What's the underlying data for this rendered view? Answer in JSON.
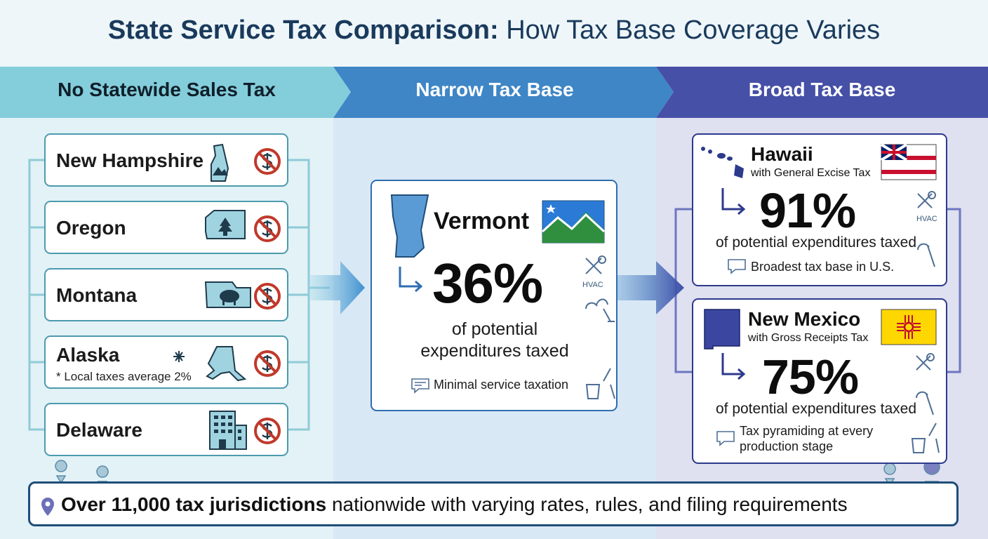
{
  "header": {
    "title_bold": "State Service Tax Comparison:",
    "title_rest": "How Tax Base Coverage Varies"
  },
  "columns": [
    {
      "title": "No Statewide Sales Tax"
    },
    {
      "title": "Narrow Tax Base"
    },
    {
      "title": "Broad Tax Base"
    }
  ],
  "no_tax_states": [
    {
      "name": "New Hampshire"
    },
    {
      "name": "Oregon"
    },
    {
      "name": "Montana"
    },
    {
      "name": "Alaska",
      "note": "* Local taxes average 2%"
    },
    {
      "name": "Delaware"
    }
  ],
  "narrow": {
    "name": "Vermont",
    "percent": "36%",
    "caption": "of potential expenditures taxed",
    "icon_label": "HVAC",
    "note": "Minimal service taxation"
  },
  "broad": [
    {
      "name": "Hawaii",
      "subtitle": "with General Excise Tax",
      "percent": "91%",
      "caption": "of potential expenditures taxed",
      "icon_label": "HVAC",
      "note": "Broadest tax base in U.S."
    },
    {
      "name": "New Mexico",
      "subtitle": "with Gross Receipts Tax",
      "percent": "75%",
      "caption": "of potential expenditures taxed",
      "note": "Tax pyramiding at every production stage"
    }
  ],
  "footer": {
    "bold": "Over 11,000 tax jurisdictions",
    "rest": "nationwide with varying rates, rules, and filing requirements"
  }
}
